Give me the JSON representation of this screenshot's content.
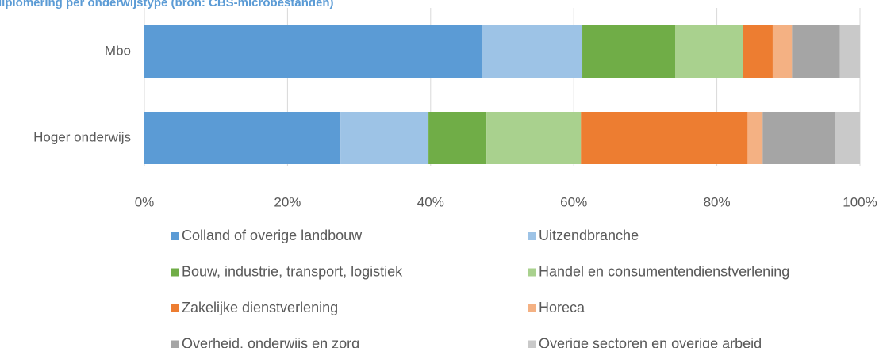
{
  "chart_data": {
    "type": "stacked-bar-horizontal",
    "title": "diplomering per onderwijstype (bron: CBS-microbestanden)",
    "categories": [
      "Mbo",
      "Hoger onderwijs"
    ],
    "series": [
      {
        "name": "Colland of overige landbouw",
        "color": "#5b9bd5",
        "values": [
          47.2,
          27.4
        ]
      },
      {
        "name": "Uitzendbranche",
        "color": "#9dc3e6",
        "values": [
          14.0,
          12.3
        ]
      },
      {
        "name": "Bouw, industrie, transport, logistiek",
        "color": "#70ad47",
        "values": [
          13.0,
          8.1
        ]
      },
      {
        "name": "Handel en consumentendienstverlening",
        "color": "#a9d18e",
        "values": [
          9.4,
          13.2
        ]
      },
      {
        "name": "Zakelijke dienstverlening",
        "color": "#ed7d31",
        "values": [
          4.2,
          23.3
        ]
      },
      {
        "name": "Horeca",
        "color": "#f4b183",
        "values": [
          2.7,
          2.1
        ]
      },
      {
        "name": "Overheid, onderwijs en zorg",
        "color": "#a5a5a5",
        "values": [
          6.7,
          10.1
        ]
      },
      {
        "name": "Overige sectoren en overige arbeid",
        "color": "#c9c9c9",
        "values": [
          2.8,
          3.5
        ]
      }
    ],
    "xlim": [
      0,
      100
    ],
    "xticks": [
      {
        "value": 0,
        "label": "0%"
      },
      {
        "value": 20,
        "label": "20%"
      },
      {
        "value": 40,
        "label": "40%"
      },
      {
        "value": 60,
        "label": "60%"
      },
      {
        "value": 80,
        "label": "80%"
      },
      {
        "value": 100,
        "label": "100%"
      }
    ],
    "grid": true,
    "legend": "bottom"
  }
}
